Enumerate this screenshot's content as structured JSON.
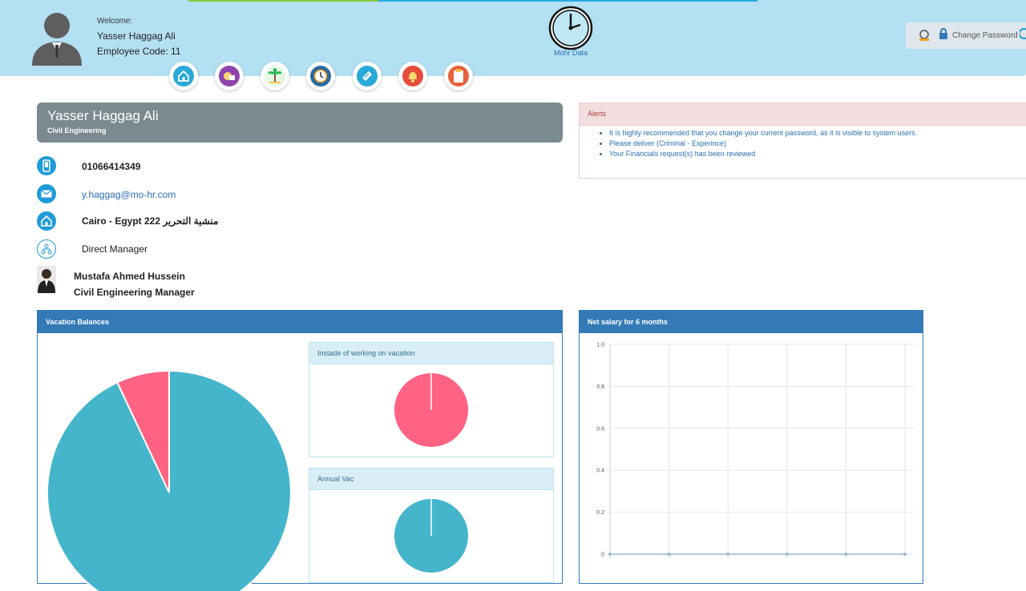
{
  "header": {
    "welcome_label": "Welcome:",
    "user_name": "Yasser Haggag Ali",
    "employee_code": "Employee Code: 11",
    "logo_label": "Mohr Data",
    "change_password_label": "Change Password",
    "nav_icons": [
      "home-icon",
      "payroll-icon",
      "vacation-icon",
      "attendance-icon",
      "requests-icon",
      "notifications-icon",
      "tasks-icon"
    ]
  },
  "profile": {
    "name": "Yasser Haggag Ali",
    "department": "Civil Engineering",
    "phone": "01066414349",
    "email": "y.haggag@mo-hr.com",
    "address": "Cairo - Egypt 222 منشية التحرير",
    "direct_manager_label": "Direct Manager",
    "manager_name": "Mustafa Ahmed Hussein",
    "manager_title": "Civil Engineering Manager"
  },
  "alerts": {
    "title": "Alerts",
    "items": [
      "It is highly recommended that you change your current password, as it is visible to system users.",
      "Please deliver (Criminal - Experince)",
      "Your Financials request(s) has been reviewed"
    ]
  },
  "vacation": {
    "title": "Vacation Balances",
    "instead_title": "Instade of working on vacation",
    "annual_title": "Annual Vac"
  },
  "colors": {
    "header_bg": "#b3e0f2",
    "panel_blue": "#337ab7",
    "pie_teal": "#45b5cc",
    "pie_pink": "#ff6384"
  },
  "chart_data": [
    {
      "type": "pie",
      "title": "",
      "values": [
        93,
        7
      ],
      "colors": [
        "#45b5cc",
        "#ff6384"
      ]
    },
    {
      "type": "pie",
      "title": "",
      "values": [
        100
      ],
      "colors": [
        "#ff6384"
      ]
    },
    {
      "type": "pie",
      "title": "",
      "values": [
        100
      ],
      "colors": [
        "#45b5cc"
      ]
    },
    {
      "type": "line",
      "title": "Net salary for 6 months",
      "y_ticks": [
        "1.0",
        "0.8",
        "0.6",
        "0.4",
        "0.2",
        "0"
      ],
      "ylim": [
        0,
        1
      ],
      "values": [
        0,
        0,
        0,
        0,
        0,
        0
      ],
      "grid": true
    }
  ]
}
